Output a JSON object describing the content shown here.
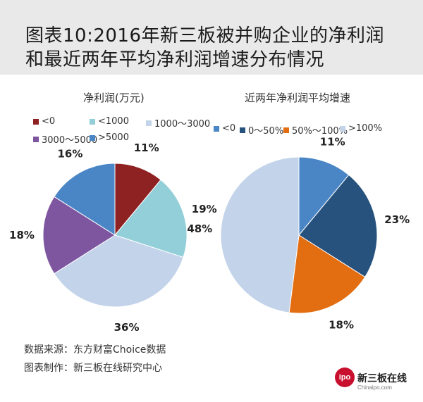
{
  "header": {
    "title_line1": "图表10:2016年新三板被并购企业的净利润",
    "title_line2": "和最近两年平均净利润增速分布情况"
  },
  "footer": {
    "source": "数据来源：东方财富Choice数据",
    "maker": "图表制作：新三板在线研究中心"
  },
  "brand": {
    "logo_text": "ipo",
    "name": "新三板在线",
    "url": "Chinaipo.com"
  },
  "chart_data": [
    {
      "type": "pie",
      "title": "净利润(万元)",
      "legend_position": "top",
      "categories": [
        "<0",
        "<1000",
        "1000～3000",
        "3000～5000",
        ">5000"
      ],
      "values": [
        11,
        19,
        36,
        18,
        16
      ],
      "labels": [
        "11%",
        "19%",
        "36%",
        "18%",
        "16%"
      ],
      "colors": [
        "#8e2121",
        "#92cfd8",
        "#c3d4ea",
        "#7e56a0",
        "#4a86c6"
      ]
    },
    {
      "type": "pie",
      "title": "近两年净利润平均增速",
      "legend_position": "top",
      "categories": [
        "<0",
        "0～50%",
        "50%～100%",
        ">100%"
      ],
      "values": [
        11,
        23,
        18,
        48
      ],
      "labels": [
        "11%",
        "23%",
        "18%",
        "48%"
      ],
      "colors": [
        "#4a86c6",
        "#28527e",
        "#e36e12",
        "#c3d4ea"
      ]
    }
  ]
}
